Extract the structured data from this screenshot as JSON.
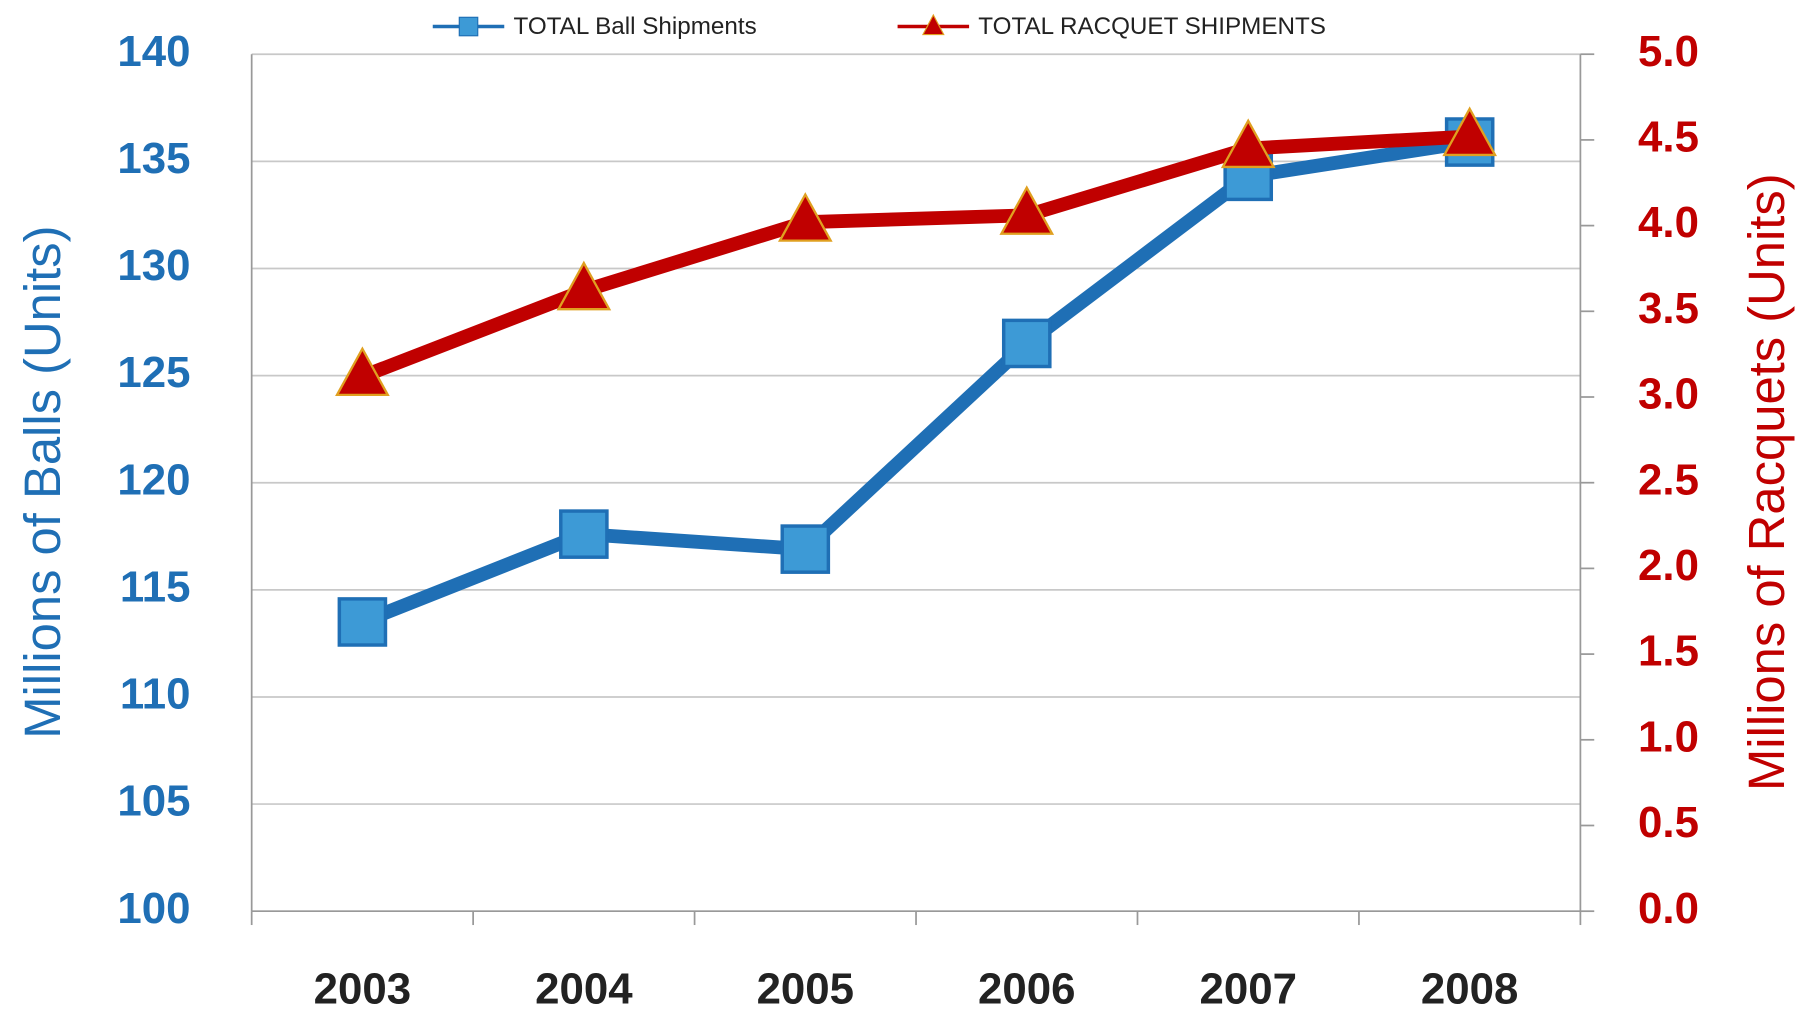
{
  "chart_data": {
    "type": "line",
    "categories": [
      "2003",
      "2004",
      "2005",
      "2006",
      "2007",
      "2008"
    ],
    "series": [
      {
        "name": "TOTAL Ball Shipments",
        "color": "#1f6fb5",
        "marker": "square",
        "values": [
          113.5,
          117.6,
          116.9,
          126.5,
          134.3,
          135.9
        ]
      },
      {
        "name": "TOTAL RACQUET SHIPMENTS",
        "color": "#c00000",
        "marker": "triangle",
        "axis": "y2",
        "values": [
          3.12,
          3.62,
          4.02,
          4.06,
          4.45,
          4.52
        ]
      }
    ],
    "ylabel": "Millions of Balls (Units)",
    "y2label": "Millions of Racquets (Units)",
    "ylim": [
      100,
      140
    ],
    "yticks": [
      100,
      105,
      110,
      115,
      120,
      125,
      130,
      135,
      140
    ],
    "y2lim": [
      0,
      5
    ],
    "y2ticks": [
      {
        "value": 0,
        "label": "0.0"
      },
      {
        "value": 0.5,
        "label": "0.5"
      },
      {
        "value": 1,
        "label": "1.0"
      },
      {
        "value": 1.5,
        "label": "1.5"
      },
      {
        "value": 2,
        "label": "2.0"
      },
      {
        "value": 2.5,
        "label": "2.5"
      },
      {
        "value": 3,
        "label": "3.0"
      },
      {
        "value": 3.5,
        "label": "3.5"
      },
      {
        "value": 4,
        "label": "4.0"
      },
      {
        "value": 4.5,
        "label": "4.5"
      },
      {
        "value": 5,
        "label": "5.0"
      }
    ],
    "grid": true,
    "legend": "top"
  }
}
